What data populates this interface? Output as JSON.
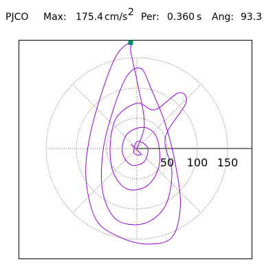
{
  "chart_data": {
    "type": "polar",
    "station": "PJCO",
    "max_label": "Max:",
    "max_value": "175.4",
    "max_unit": "cm/s",
    "max_unit_power": "2",
    "period_label": "Per:",
    "period_value": "0.360",
    "period_unit": "s",
    "angle_label": "Ang:",
    "angle_value": "93.3",
    "rticks": [
      50,
      100,
      150
    ],
    "trace_color": "#9400d3",
    "marker_color": "#008b6b",
    "trace_x": [
      0,
      12.5,
      1,
      -10,
      -10.1,
      -33,
      -56,
      -78,
      -84,
      -67,
      -27,
      18,
      58,
      72,
      64,
      47,
      24,
      7,
      -16,
      -39,
      -56,
      -56,
      -33,
      12,
      47,
      58,
      47,
      81,
      69,
      30,
      1,
      -33,
      -44,
      -39,
      -16,
      18,
      37,
      33,
      12,
      -16,
      -24,
      -10,
      12,
      18,
      1,
      -5,
      7,
      -10
    ],
    "trace_y": [
      0,
      41,
      109,
      160,
      175.1,
      155,
      98,
      18,
      -50,
      -118,
      -147,
      -158,
      -147,
      -95,
      -27,
      41,
      98,
      132,
      120,
      64,
      -5,
      -73,
      -118,
      -124,
      -95,
      -39,
      18,
      75,
      92,
      64,
      75,
      52,
      7,
      -39,
      -67,
      -61,
      -27,
      18,
      35,
      24,
      -5,
      -27,
      -22,
      1,
      12,
      -7,
      -10,
      7
    ]
  }
}
